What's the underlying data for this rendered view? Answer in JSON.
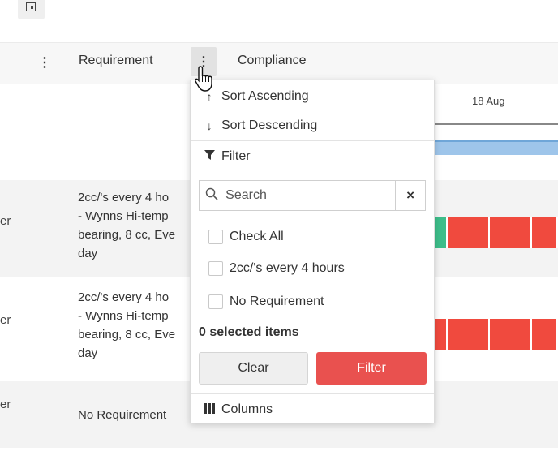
{
  "toolbar": {
    "top_icon": "window-icon"
  },
  "header": {
    "columns": [
      "Requirement",
      "Compliance"
    ],
    "kebab_glyph": "⋮",
    "gantt_date": "18 Aug"
  },
  "rows": [
    {
      "edge_text": "er",
      "requirement": "2cc/'s every 4 ho\n- Wynns Hi-temp\nbearing, 8 cc, Eve\nday",
      "cells": [
        {
          "color": "#3dbd8a"
        },
        {
          "color": "#f04a3e"
        },
        {
          "color": "#f04a3e"
        },
        {
          "color": "#f04a3e"
        }
      ]
    },
    {
      "edge_text": "er",
      "requirement": "2cc/'s every 4 ho\n- Wynns Hi-temp\nbearing, 8 cc, Eve\nday",
      "cells": [
        {
          "color": "#f04a3e"
        },
        {
          "color": "#f04a3e"
        },
        {
          "color": "#f04a3e"
        },
        {
          "color": "#f04a3e"
        }
      ]
    },
    {
      "edge_text": "er",
      "requirement": "No Requirement"
    }
  ],
  "menu": {
    "sort_ascending": "Sort Ascending",
    "sort_descending": "Sort Descending",
    "filter": "Filter",
    "search_placeholder": "Search",
    "clear_icon": "×",
    "options": [
      "Check All",
      "2cc/'s every 4 hours",
      "No Requirement"
    ],
    "selected_count": "0 selected items",
    "clear_button": "Clear",
    "filter_button": "Filter",
    "columns": "Columns"
  },
  "colors": {
    "accent_red": "#e9514f",
    "compliance_green": "#3dbd8a",
    "compliance_red": "#f04a3e",
    "gantt_bar": "#9ec5ea"
  }
}
